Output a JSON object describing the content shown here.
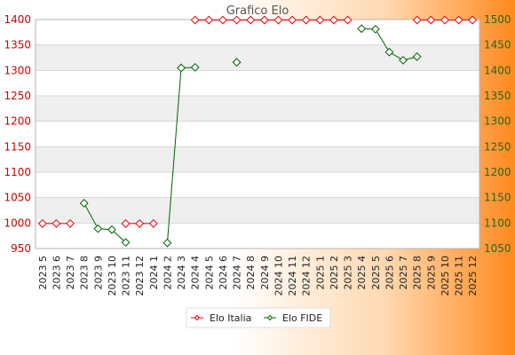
{
  "chart_data": {
    "type": "line",
    "title": "Grafico Elo",
    "categories": [
      "2023 5",
      "2023 6",
      "2023 7",
      "2023 8",
      "2023 9",
      "2023 10",
      "2023 11",
      "2023 12",
      "2024 1",
      "2024 2",
      "2024 3",
      "2024 4",
      "2024 5",
      "2024 6",
      "2024 7",
      "2024 8",
      "2024 9",
      "2024 10",
      "2024 11",
      "2024 12",
      "2025 1",
      "2025 2",
      "2025 3",
      "2025 4",
      "2025 5",
      "2025 6",
      "2025 7",
      "2025 8",
      "2025 9",
      "2025 10",
      "2025 11",
      "2025 12"
    ],
    "y_left": {
      "min": 950,
      "max": 1400,
      "ticks": [
        950,
        1000,
        1050,
        1100,
        1150,
        1200,
        1250,
        1300,
        1350,
        1400
      ]
    },
    "y_right": {
      "min": 1050,
      "max": 1500,
      "ticks": [
        1050,
        1100,
        1150,
        1200,
        1250,
        1300,
        1350,
        1400,
        1450,
        1500
      ]
    },
    "series": [
      {
        "name": "Elo Italia",
        "axis": "left",
        "color": "#e8000b",
        "values": [
          999,
          999,
          999,
          null,
          null,
          null,
          999,
          999,
          999,
          null,
          null,
          1399,
          1399,
          1399,
          1399,
          1399,
          1399,
          1399,
          1399,
          1399,
          1399,
          1399,
          1399,
          null,
          null,
          null,
          null,
          1399,
          1399,
          1399,
          1399,
          1399
        ]
      },
      {
        "name": "Elo FIDE",
        "axis": "right",
        "color": "#006400",
        "values": [
          null,
          null,
          null,
          1139,
          1089,
          1087,
          1062,
          null,
          null,
          1061,
          1405,
          1406,
          null,
          null,
          1416,
          null,
          null,
          null,
          null,
          null,
          null,
          null,
          null,
          1482,
          1481,
          1436,
          1420,
          1427,
          null,
          null,
          null,
          null
        ]
      }
    ],
    "grid": true,
    "legend_position": "bottom"
  }
}
